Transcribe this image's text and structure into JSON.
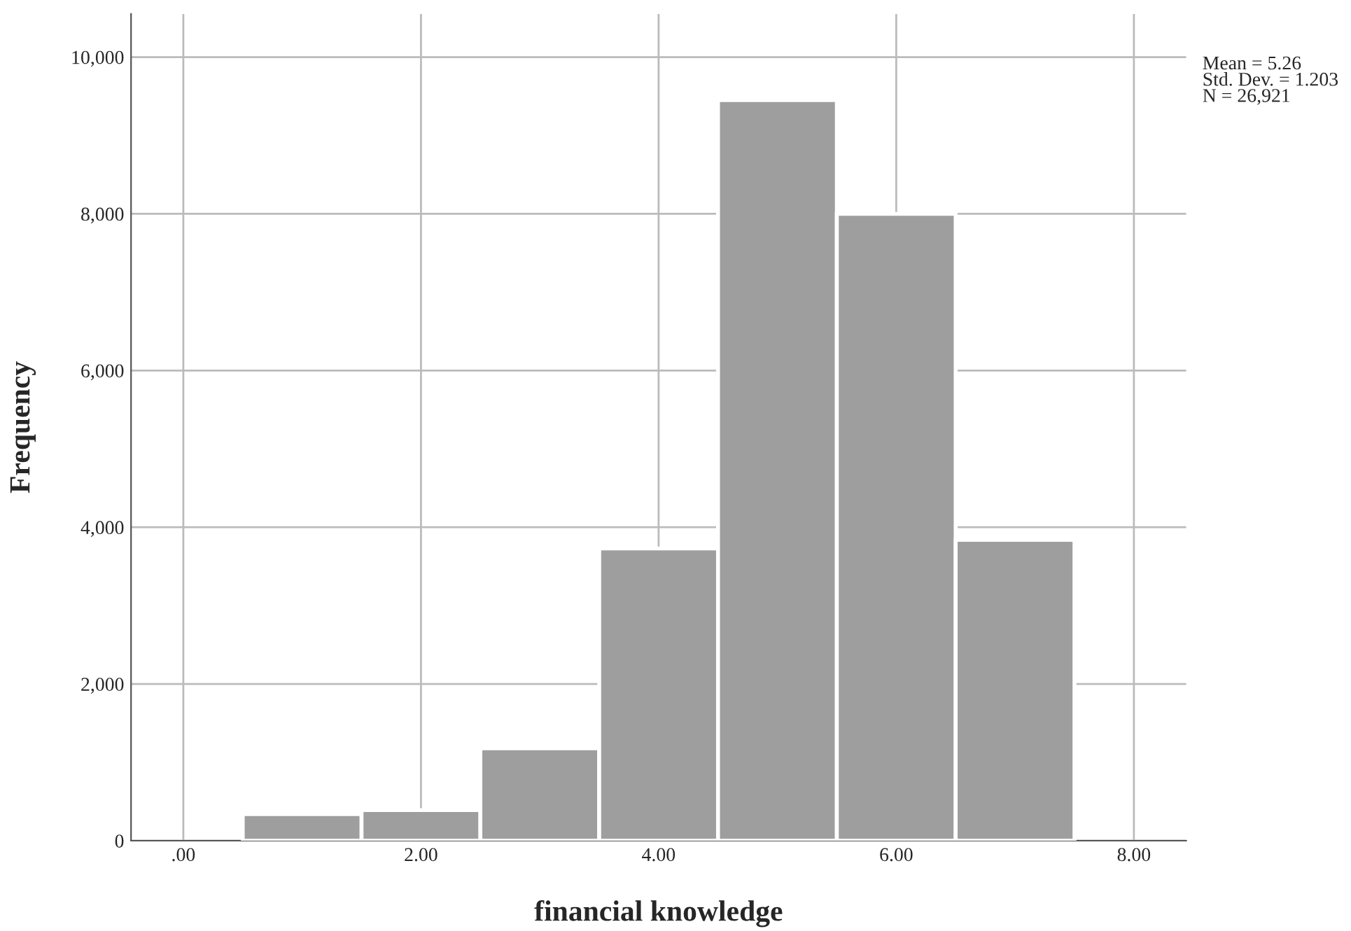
{
  "chart_data": {
    "type": "histogram",
    "xlabel": "financial knowledge",
    "ylabel": "Frequency",
    "bins": [
      0.5,
      1.5,
      2.5,
      3.5,
      4.5,
      5.5,
      6.5,
      7.5
    ],
    "values": [
      340,
      390,
      1180,
      3730,
      9450,
      8000,
      3840
    ],
    "color": "#9e9e9e",
    "xlim": [
      -0.44,
      8.44
    ],
    "xticks": [
      {
        "value": 0,
        "label": ".00"
      },
      {
        "value": 2,
        "label": "2.00"
      },
      {
        "value": 4,
        "label": "4.00"
      },
      {
        "value": 6,
        "label": "6.00"
      },
      {
        "value": 8,
        "label": "8.00"
      }
    ],
    "ylim": [
      0,
      10550
    ],
    "yticks": [
      0,
      {
        "value": 2000,
        "label": "2,000"
      },
      {
        "value": 4000,
        "label": "4,000"
      },
      {
        "value": 6000,
        "label": "6,000"
      },
      {
        "value": 8000,
        "label": "8,000"
      },
      {
        "value": 10000,
        "label": "10,000"
      }
    ],
    "grid": true,
    "annotations": [
      "Mean = 5.26\nStd. Dev. = 1.203\nN = 26,921"
    ]
  }
}
